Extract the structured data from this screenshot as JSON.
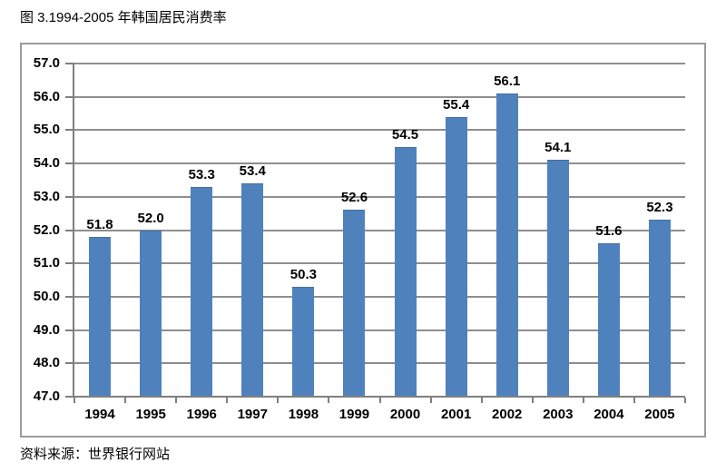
{
  "title": "图 3.1994-2005 年韩国居民消费率",
  "source_note": "资料来源：世界银行网站",
  "colors": {
    "bar": "#4f81bd",
    "bar_border": "#44709f",
    "gridline": "#8e8e8e",
    "axis": "#7f7f7f",
    "frame_border": "#9b9b9b",
    "text": "#000000",
    "background": "#ffffff"
  },
  "chart_data": {
    "type": "bar",
    "title": "图 3.1994-2005 年韩国居民消费率",
    "categories": [
      "1994",
      "1995",
      "1996",
      "1997",
      "1998",
      "1999",
      "2000",
      "2001",
      "2002",
      "2003",
      "2004",
      "2005"
    ],
    "values": [
      51.8,
      52.0,
      53.3,
      53.4,
      50.3,
      52.6,
      54.5,
      55.4,
      56.1,
      54.1,
      51.6,
      52.3
    ],
    "data_labels": [
      "51.8",
      "52.0",
      "53.3",
      "53.4",
      "50.3",
      "52.6",
      "54.5",
      "55.4",
      "56.1",
      "54.1",
      "51.6",
      "52.3"
    ],
    "xlabel": "",
    "ylabel": "",
    "ylim": [
      47.0,
      57.0
    ],
    "y_tick_step": 1.0,
    "y_tick_labels": [
      "47.0",
      "48.0",
      "49.0",
      "50.0",
      "51.0",
      "52.0",
      "53.0",
      "54.0",
      "55.0",
      "56.0",
      "57.0"
    ],
    "grid": true,
    "legend_position": "none",
    "source_note": "资料来源：世界银行网站"
  }
}
